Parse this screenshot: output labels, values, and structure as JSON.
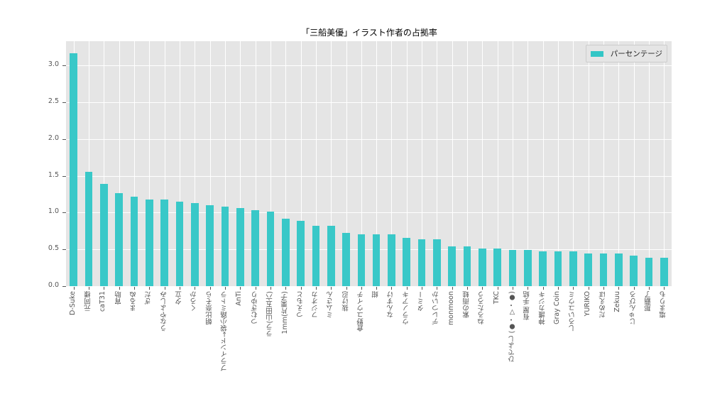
{
  "chart_data": {
    "type": "bar",
    "title": "「三船美優」イラスト作者の占拠率",
    "xlabel": "",
    "ylabel": "",
    "ylim": [
      0,
      3.33
    ],
    "yticks": [
      0.0,
      0.5,
      1.0,
      1.5,
      2.0,
      2.5,
      3.0
    ],
    "ytick_labels": [
      "0.0",
      "0.5",
      "1.0",
      "1.5",
      "2.0",
      "2.5",
      "3.0"
    ],
    "grid": true,
    "legend_position": "upper right",
    "bar_color": "#33c6c6",
    "background_color": "#e5e5e5",
    "categories": [
      "D-Suke",
      "元同様",
      "caT31",
      "宵助",
      "まるぬ",
      "ぎだ",
      "うなやよしみ",
      "夕立",
      "くろか",
      "朝比奈そら",
      "ブラインド→袋小路ミトラ",
      "AnTi",
      "つむぎゆり",
      "ララ(山田五六)",
      "1mm(片栗子)",
      "つえもと",
      "フジオカ",
      "ミムさん",
      "抜け忍",
      "倉野ユウイチ",
      "紺",
      "なんすけ",
      "ウラノアキ",
      "タミー",
      "デレついか",
      "monmoon",
      "紫の雨蛙",
      "ねろたろう",
      "TKC",
      "ひでよし (●・▽・●)",
      "有屋 手結",
      "神護カジキ",
      "Gray Coin",
      "しろいユウミ",
      "YURIKO",
      "だめえぼ",
      "Zekuu",
      "じゅんぴろ",
      "那覇了",
      "塩まりも"
    ],
    "series": [
      {
        "name": "パーセンテージ",
        "values": [
          3.17,
          1.55,
          1.39,
          1.26,
          1.22,
          1.18,
          1.18,
          1.15,
          1.13,
          1.1,
          1.08,
          1.06,
          1.03,
          1.01,
          0.92,
          0.89,
          0.82,
          0.82,
          0.72,
          0.7,
          0.7,
          0.7,
          0.66,
          0.64,
          0.64,
          0.54,
          0.54,
          0.51,
          0.51,
          0.49,
          0.49,
          0.47,
          0.47,
          0.47,
          0.44,
          0.44,
          0.44,
          0.42,
          0.39,
          0.39
        ]
      }
    ]
  },
  "legend": {
    "label": "パーセンテージ"
  }
}
